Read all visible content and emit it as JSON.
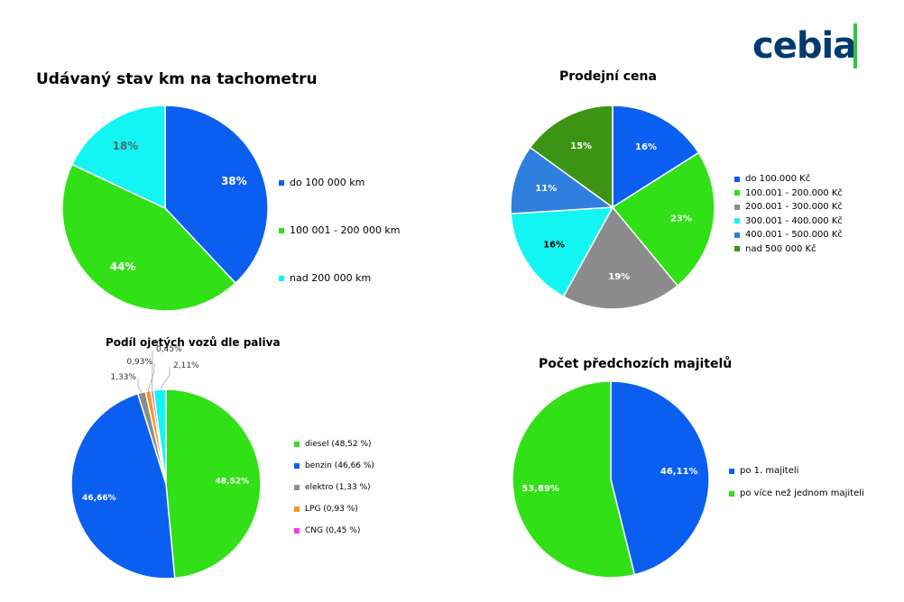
{
  "brand": {
    "logo_text": "cebia",
    "color": "#003a70",
    "accent": "#2fc53c"
  },
  "chart_data": [
    {
      "type": "pie",
      "title": "Udávaný stav km na tachometru",
      "labels": [
        "do 100 000 km",
        "100 001 - 200 000 km",
        "nad 200 000 km"
      ],
      "values": [
        38,
        44,
        18
      ],
      "display_labels": [
        "38%",
        "44%",
        "18%"
      ],
      "colors": [
        "#0a5ff0",
        "#31e016",
        "#13f5f2"
      ],
      "legend": "right"
    },
    {
      "type": "pie",
      "title": "Prodejní cena",
      "labels": [
        "do 100.000 Kč",
        "100.001 - 200.000 Kč",
        "200.001 - 300.000 Kč",
        "300.001 - 400.000 Kč",
        "400.001 - 500.000 Kč",
        "nad 500 000 Kč"
      ],
      "values": [
        16,
        23,
        19,
        16,
        11,
        15
      ],
      "display_labels": [
        "16%",
        "23%",
        "19%",
        "16%",
        "11%",
        "15%"
      ],
      "colors": [
        "#0a5ff0",
        "#31e016",
        "#8c8c8c",
        "#13f5f2",
        "#2e7fde",
        "#3d9414"
      ],
      "legend": "right"
    },
    {
      "type": "pie",
      "title": "Podíl ojetých vozů dle paliva",
      "labels": [
        "diesel (48,52 %)",
        "benzin (46,66 %)",
        "elektro (1,33 %)",
        "LPG (0,93 %)",
        "CNG (0,45 %)",
        ""
      ],
      "values": [
        48.52,
        46.66,
        1.33,
        0.93,
        0.45,
        2.11
      ],
      "display_labels": [
        "48,52%",
        "46,66%",
        "1,33%",
        "0,93%",
        "0,45%",
        "2,11%"
      ],
      "colors": [
        "#31e016",
        "#0a5ff0",
        "#8c8c8c",
        "#f39a1c",
        "#ff36e0",
        "#13f5f2"
      ],
      "legend": "right"
    },
    {
      "type": "pie",
      "title": "Počet předchozích majitelů",
      "labels": [
        "po 1. majiteli",
        "po více než jednom majiteli"
      ],
      "values": [
        46.11,
        53.89
      ],
      "display_labels": [
        "46,11%",
        "53,89%"
      ],
      "colors": [
        "#0a5ff0",
        "#31e016"
      ],
      "legend": "right"
    }
  ]
}
